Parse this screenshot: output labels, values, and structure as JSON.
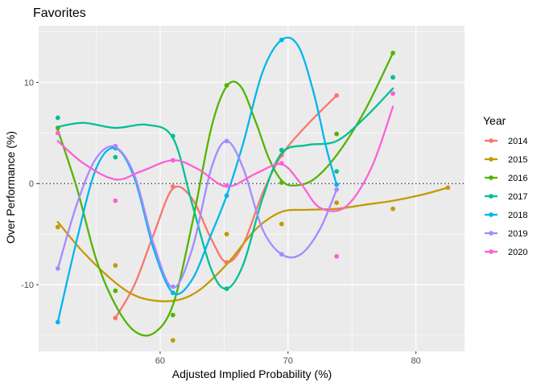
{
  "chart_data": {
    "type": "scatter",
    "title": "Favorites",
    "xlabel": "Adjusted Implied Probability (%)",
    "ylabel": "Over Performance (%)",
    "xlim": [
      50.5,
      83.8
    ],
    "ylim": [
      -16.6,
      15.6
    ],
    "x_ticks": [
      60,
      70,
      80
    ],
    "y_ticks": [
      -10,
      0,
      10
    ],
    "reference_line": {
      "y": 0,
      "style": "dotted"
    },
    "grid": true,
    "smoothing": "loess",
    "legend": {
      "title": "Year",
      "position": "right"
    },
    "series": [
      {
        "name": "2014",
        "color": "#F8766D",
        "points": [
          [
            56.5,
            -13.3
          ],
          [
            61.0,
            -0.3
          ],
          [
            65.2,
            -7.8
          ],
          [
            69.5,
            2.8
          ],
          [
            73.8,
            8.7
          ]
        ],
        "curve": [
          [
            56.5,
            -13.3
          ],
          [
            58.0,
            -10.0
          ],
          [
            59.5,
            -5.0
          ],
          [
            61.0,
            -0.5
          ],
          [
            62.5,
            -1.5
          ],
          [
            64.0,
            -5.5
          ],
          [
            65.2,
            -7.8
          ],
          [
            66.5,
            -6.0
          ],
          [
            68.0,
            -1.0
          ],
          [
            69.5,
            2.8
          ],
          [
            71.5,
            5.8
          ],
          [
            73.8,
            8.7
          ]
        ]
      },
      {
        "name": "2015",
        "color": "#C49A00",
        "points": [
          [
            52.0,
            -4.3
          ],
          [
            56.5,
            -8.1
          ],
          [
            61.0,
            -15.5
          ],
          [
            65.2,
            -5.0
          ],
          [
            69.5,
            -4.0
          ],
          [
            73.8,
            -1.9
          ],
          [
            78.2,
            -2.5
          ],
          [
            82.5,
            -0.4
          ]
        ],
        "curve": [
          [
            52.0,
            -3.8
          ],
          [
            54.0,
            -6.8
          ],
          [
            56.5,
            -9.8
          ],
          [
            58.5,
            -11.3
          ],
          [
            61.0,
            -11.6
          ],
          [
            63.0,
            -10.6
          ],
          [
            65.2,
            -8.0
          ],
          [
            67.5,
            -4.5
          ],
          [
            69.5,
            -2.8
          ],
          [
            71.5,
            -2.6
          ],
          [
            73.8,
            -2.5
          ],
          [
            76.0,
            -2.1
          ],
          [
            78.2,
            -1.7
          ],
          [
            80.5,
            -1.1
          ],
          [
            82.5,
            -0.4
          ]
        ]
      },
      {
        "name": "2016",
        "color": "#53B400",
        "points": [
          [
            52.0,
            5.5
          ],
          [
            56.5,
            -10.6
          ],
          [
            61.0,
            -13.0
          ],
          [
            65.2,
            9.7
          ],
          [
            69.5,
            0.1
          ],
          [
            73.8,
            4.9
          ],
          [
            78.2,
            12.9
          ]
        ],
        "curve": [
          [
            52.0,
            5.3
          ],
          [
            53.5,
            -0.5
          ],
          [
            55.0,
            -7.5
          ],
          [
            56.5,
            -12.0
          ],
          [
            58.0,
            -14.6
          ],
          [
            59.5,
            -14.8
          ],
          [
            61.0,
            -12.0
          ],
          [
            62.5,
            -4.0
          ],
          [
            64.0,
            5.5
          ],
          [
            65.2,
            9.6
          ],
          [
            66.3,
            9.6
          ],
          [
            67.5,
            6.0
          ],
          [
            68.5,
            2.5
          ],
          [
            69.5,
            0.3
          ],
          [
            70.5,
            -0.2
          ],
          [
            72.0,
            0.4
          ],
          [
            73.8,
            2.8
          ],
          [
            76.0,
            7.2
          ],
          [
            78.2,
            12.9
          ]
        ]
      },
      {
        "name": "2017",
        "color": "#00C094",
        "points": [
          [
            52.0,
            6.5
          ],
          [
            56.5,
            2.6
          ],
          [
            61.0,
            4.7
          ],
          [
            65.2,
            -10.4
          ],
          [
            69.5,
            3.3
          ],
          [
            73.8,
            1.2
          ],
          [
            78.2,
            10.5
          ]
        ],
        "curve": [
          [
            52.0,
            5.6
          ],
          [
            54.0,
            6.0
          ],
          [
            56.5,
            5.5
          ],
          [
            59.0,
            5.8
          ],
          [
            61.0,
            4.5
          ],
          [
            62.5,
            -2.0
          ],
          [
            64.0,
            -8.5
          ],
          [
            65.2,
            -10.4
          ],
          [
            66.5,
            -8.0
          ],
          [
            68.0,
            -1.5
          ],
          [
            69.5,
            3.0
          ],
          [
            71.5,
            3.8
          ],
          [
            73.8,
            4.2
          ],
          [
            76.0,
            6.5
          ],
          [
            78.2,
            9.4
          ]
        ]
      },
      {
        "name": "2018",
        "color": "#00B6EB",
        "points": [
          [
            52.0,
            -13.7
          ],
          [
            56.5,
            3.5
          ],
          [
            61.0,
            -10.8
          ],
          [
            65.2,
            -1.2
          ],
          [
            69.5,
            14.2
          ],
          [
            73.8,
            -0.1
          ]
        ],
        "curve": [
          [
            52.0,
            -13.7
          ],
          [
            53.5,
            -5.5
          ],
          [
            55.0,
            1.5
          ],
          [
            56.5,
            3.5
          ],
          [
            58.0,
            0.5
          ],
          [
            59.5,
            -6.5
          ],
          [
            61.0,
            -10.8
          ],
          [
            62.5,
            -9.5
          ],
          [
            64.0,
            -5.0
          ],
          [
            65.2,
            -1.2
          ],
          [
            66.5,
            4.0
          ],
          [
            68.0,
            11.0
          ],
          [
            69.5,
            14.2
          ],
          [
            70.8,
            13.6
          ],
          [
            72.0,
            9.0
          ],
          [
            73.0,
            3.5
          ],
          [
            73.8,
            -0.1
          ]
        ]
      },
      {
        "name": "2019",
        "color": "#A58AFF",
        "points": [
          [
            52.0,
            -8.4
          ],
          [
            56.5,
            3.7
          ],
          [
            61.0,
            -10.2
          ],
          [
            65.2,
            4.2
          ],
          [
            69.5,
            -7.0
          ],
          [
            73.8,
            -0.6
          ]
        ],
        "curve": [
          [
            52.0,
            -8.4
          ],
          [
            53.5,
            -2.0
          ],
          [
            55.0,
            2.5
          ],
          [
            56.5,
            3.6
          ],
          [
            58.0,
            0.8
          ],
          [
            59.5,
            -6.0
          ],
          [
            61.0,
            -10.3
          ],
          [
            62.5,
            -6.5
          ],
          [
            64.0,
            1.5
          ],
          [
            65.2,
            4.2
          ],
          [
            66.5,
            1.5
          ],
          [
            68.0,
            -4.5
          ],
          [
            69.5,
            -7.0
          ],
          [
            71.0,
            -7.0
          ],
          [
            72.5,
            -4.5
          ],
          [
            73.8,
            -0.6
          ]
        ]
      },
      {
        "name": "2020",
        "color": "#FB61D7",
        "points": [
          [
            52.0,
            5.0
          ],
          [
            56.5,
            -1.7
          ],
          [
            61.0,
            2.3
          ],
          [
            65.2,
            -0.2
          ],
          [
            69.5,
            2.0
          ],
          [
            73.8,
            -7.2
          ],
          [
            78.2,
            8.9
          ]
        ],
        "curve": [
          [
            52.0,
            4.2
          ],
          [
            54.0,
            2.0
          ],
          [
            56.5,
            0.4
          ],
          [
            58.5,
            1.2
          ],
          [
            61.0,
            2.3
          ],
          [
            63.0,
            1.4
          ],
          [
            65.2,
            -0.3
          ],
          [
            67.5,
            1.0
          ],
          [
            69.5,
            1.9
          ],
          [
            71.0,
            0.0
          ],
          [
            72.5,
            -2.4
          ],
          [
            74.5,
            -2.3
          ],
          [
            76.5,
            1.5
          ],
          [
            78.2,
            7.6
          ]
        ]
      }
    ]
  }
}
